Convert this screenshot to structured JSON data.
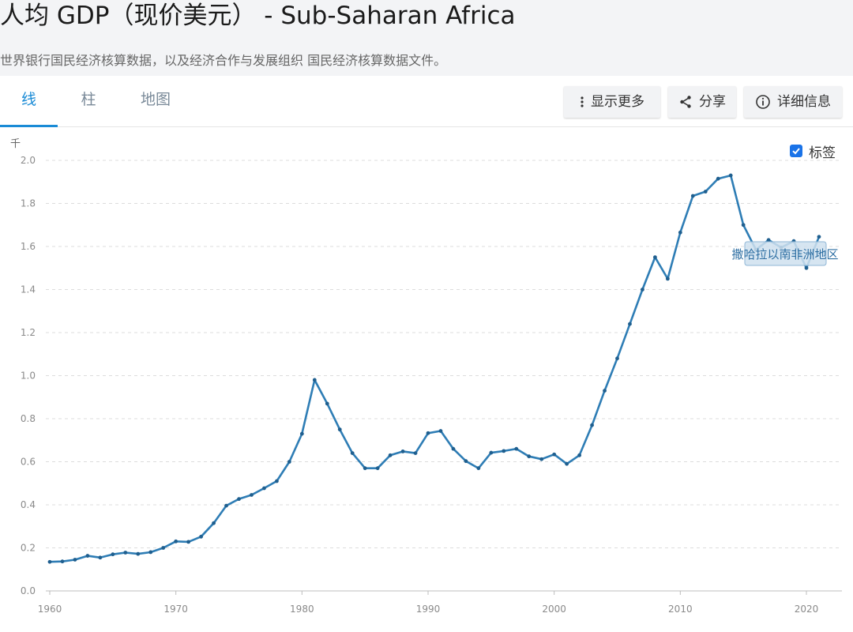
{
  "header": {
    "title": "人均 GDP（现价美元） - Sub-Saharan Africa",
    "subtitle": "世界银行国民经济核算数据，以及经济合作与发展组织 国民经济核算数据文件。"
  },
  "tabs": [
    {
      "label": "线",
      "active": true
    },
    {
      "label": "柱",
      "active": false
    },
    {
      "label": "地图",
      "active": false
    }
  ],
  "toolbar": {
    "more_label": "显示更多",
    "share_label": "分享",
    "details_label": "详细信息"
  },
  "legend_toggle": {
    "label": "标签",
    "checked": true
  },
  "colors": {
    "accent": "#1a8bd6",
    "line": "#2e7db5",
    "checkbox": "#1a73e8"
  },
  "icons": {
    "more": "vertical-ellipsis-icon",
    "share": "share-icon",
    "details": "info-icon"
  },
  "chart_data": {
    "type": "line",
    "title": "",
    "xlabel": "",
    "ylabel": "",
    "unit_label": "千",
    "xlim": [
      1960,
      2022
    ],
    "ylim": [
      0,
      2.0
    ],
    "yticks": [
      "0.0",
      "0.2",
      "0.4",
      "0.6",
      "0.8",
      "1.0",
      "1.2",
      "1.4",
      "1.6",
      "1.8",
      "2.0"
    ],
    "xticks": [
      "1960",
      "1970",
      "1980",
      "1990",
      "2000",
      "2010",
      "2020"
    ],
    "grid": true,
    "series": [
      {
        "name": "撒哈拉以南非洲地区",
        "x": [
          1960,
          1961,
          1962,
          1963,
          1964,
          1965,
          1966,
          1967,
          1968,
          1969,
          1970,
          1971,
          1972,
          1973,
          1974,
          1975,
          1976,
          1977,
          1978,
          1979,
          1980,
          1981,
          1982,
          1983,
          1984,
          1985,
          1986,
          1987,
          1988,
          1989,
          1990,
          1991,
          1992,
          1993,
          1994,
          1995,
          1996,
          1997,
          1998,
          1999,
          2000,
          2001,
          2002,
          2003,
          2004,
          2005,
          2006,
          2007,
          2008,
          2009,
          2010,
          2011,
          2012,
          2013,
          2014,
          2015,
          2016,
          2017,
          2018,
          2019,
          2020,
          2021
        ],
        "y": [
          0.135,
          0.137,
          0.145,
          0.163,
          0.155,
          0.17,
          0.178,
          0.172,
          0.18,
          0.2,
          0.23,
          0.228,
          0.252,
          0.315,
          0.396,
          0.427,
          0.446,
          0.477,
          0.51,
          0.6,
          0.73,
          0.98,
          0.87,
          0.75,
          0.64,
          0.57,
          0.57,
          0.63,
          0.648,
          0.64,
          0.733,
          0.743,
          0.66,
          0.603,
          0.57,
          0.642,
          0.65,
          0.66,
          0.625,
          0.612,
          0.634,
          0.59,
          0.63,
          0.77,
          0.93,
          1.08,
          1.24,
          1.4,
          1.55,
          1.45,
          1.665,
          1.835,
          1.855,
          1.915,
          1.93,
          1.7,
          1.585,
          1.63,
          1.595,
          1.625,
          1.5,
          1.645
        ]
      }
    ]
  }
}
